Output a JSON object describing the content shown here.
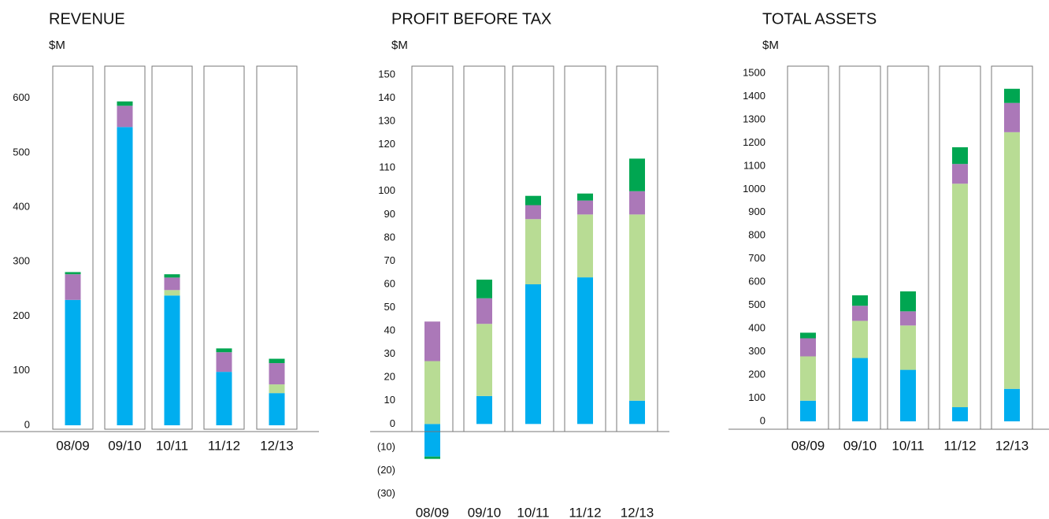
{
  "chart_data": [
    {
      "type": "stacked_bar",
      "title": "REVENUE",
      "subtitle": "$M",
      "categories": [
        "08/09",
        "09/10",
        "10/11",
        "11/12",
        "12/13"
      ],
      "series": [
        {
          "color": "#00aeef",
          "values": [
            230,
            547,
            238,
            98,
            59
          ]
        },
        {
          "color": "#b8dc94",
          "values": [
            0,
            0,
            10,
            0,
            16
          ]
        },
        {
          "color": "#ab78b8",
          "values": [
            47,
            39,
            23,
            36,
            39
          ]
        },
        {
          "color": "#00a651",
          "values": [
            4,
            8,
            6,
            7,
            8
          ]
        }
      ],
      "ylim": [
        0,
        650
      ],
      "yticks": [
        0,
        100,
        200,
        300,
        400,
        500,
        600
      ]
    },
    {
      "type": "stacked_bar",
      "title": "PROFIT BEFORE TAX",
      "subtitle": "$M",
      "categories": [
        "08/09",
        "09/10",
        "10/11",
        "11/12",
        "12/13"
      ],
      "series": [
        {
          "color": "#00aeef",
          "values": [
            -14,
            12,
            60,
            63,
            10
          ]
        },
        {
          "color": "#b8dc94",
          "values": [
            27,
            31,
            28,
            27,
            80
          ]
        },
        {
          "color": "#ab78b8",
          "values": [
            17,
            11,
            6,
            6,
            10
          ]
        },
        {
          "color": "#00a651",
          "values": [
            -1,
            8,
            4,
            3,
            14
          ]
        }
      ],
      "ylim": [
        -30,
        150
      ],
      "yticks": [
        {
          "value": -30,
          "label": "(30)"
        },
        {
          "value": -20,
          "label": "(20)"
        },
        {
          "value": -10,
          "label": "(10)"
        },
        0,
        10,
        20,
        30,
        40,
        50,
        60,
        70,
        80,
        90,
        100,
        110,
        120,
        130,
        140,
        150
      ]
    },
    {
      "type": "stacked_bar",
      "title": "TOTAL ASSETS",
      "subtitle": "$M",
      "categories": [
        "08/09",
        "09/10",
        "10/11",
        "11/12",
        "12/13"
      ],
      "series": [
        {
          "color": "#00aeef",
          "values": [
            89,
            273,
            222,
            61,
            140
          ]
        },
        {
          "color": "#b8dc94",
          "values": [
            191,
            160,
            191,
            963,
            1106
          ]
        },
        {
          "color": "#ab78b8",
          "values": [
            78,
            65,
            61,
            85,
            126
          ]
        },
        {
          "color": "#00a651",
          "values": [
            24,
            45,
            86,
            72,
            61
          ]
        }
      ],
      "ylim": [
        0,
        1500
      ],
      "yticks": [
        0,
        100,
        200,
        300,
        400,
        500,
        600,
        700,
        800,
        900,
        1000,
        1100,
        1200,
        1300,
        1400,
        1500
      ]
    }
  ]
}
